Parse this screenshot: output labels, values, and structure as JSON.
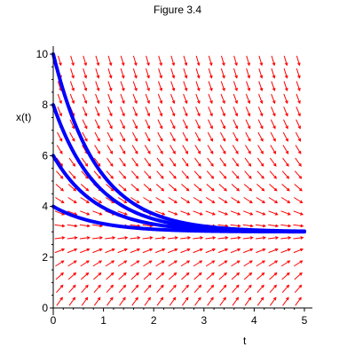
{
  "chart_data": {
    "type": "line",
    "title": "Figure 3.4",
    "xlabel": "t",
    "ylabel": "x(t)",
    "xlim": [
      0,
      5
    ],
    "ylim": [
      0,
      10
    ],
    "x_ticks": [
      "0",
      "1",
      "2",
      "3",
      "4",
      "5"
    ],
    "y_ticks": [
      "0",
      "2",
      "4",
      "6",
      "8",
      "10"
    ],
    "grid": false,
    "equilibrium": 3,
    "direction_field": {
      "color": "#ff0000",
      "description": "slope field for dx/dt = 3 - x"
    },
    "solution_curves": {
      "color": "#0000ff",
      "initial_values": [
        10,
        8,
        6,
        4
      ]
    },
    "series": [
      {
        "name": "x(0)=10",
        "x": [
          0,
          0.25,
          0.5,
          1,
          1.5,
          2,
          3,
          4,
          5
        ],
        "y": [
          10,
          8.45,
          7.25,
          5.58,
          4.56,
          3.95,
          3.35,
          3.13,
          3.05
        ]
      },
      {
        "name": "x(0)=8",
        "x": [
          0,
          0.25,
          0.5,
          1,
          1.5,
          2,
          3,
          4,
          5
        ],
        "y": [
          8,
          6.89,
          6.03,
          4.84,
          4.12,
          3.68,
          3.25,
          3.09,
          3.03
        ]
      },
      {
        "name": "x(0)=6",
        "x": [
          0,
          0.25,
          0.5,
          1,
          1.5,
          2,
          3,
          4,
          5
        ],
        "y": [
          6,
          5.34,
          4.82,
          4.1,
          3.67,
          3.41,
          3.15,
          3.05,
          3.02
        ]
      },
      {
        "name": "x(0)=4",
        "x": [
          0,
          0.25,
          0.5,
          1,
          1.5,
          2,
          3,
          4,
          5
        ],
        "y": [
          4,
          3.78,
          3.61,
          3.37,
          3.22,
          3.14,
          3.05,
          3.02,
          3.01
        ]
      }
    ]
  }
}
